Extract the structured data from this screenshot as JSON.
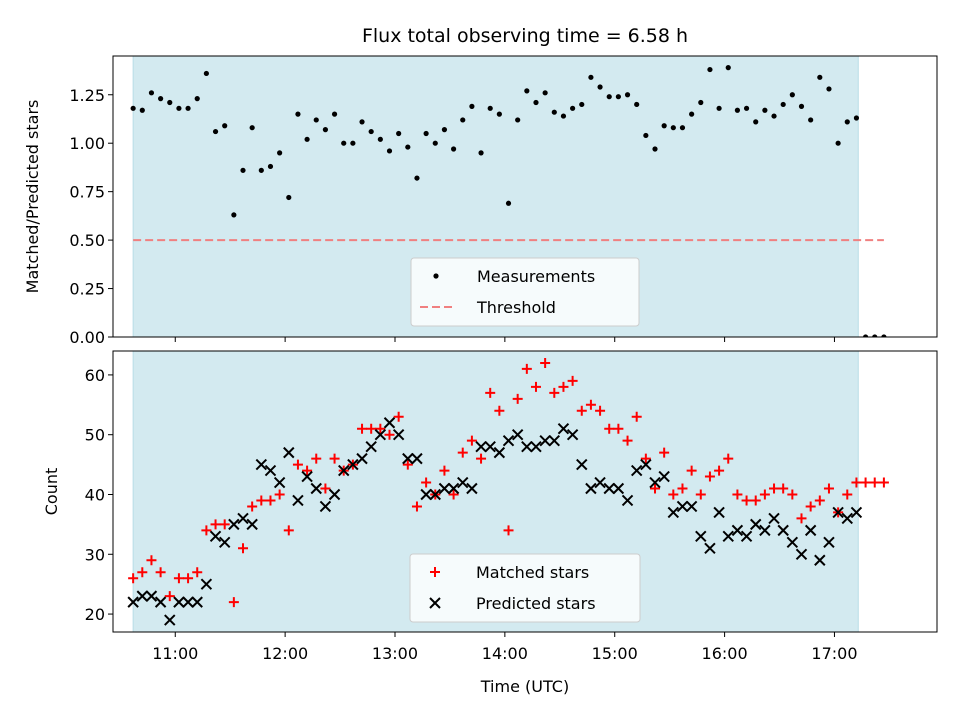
{
  "chart_data": [
    {
      "type": "scatter",
      "title": "Flux total observing time = 6.58 h",
      "ylabel": "Matched/Predicted stars",
      "xlabel": "",
      "x_axis_kind": "time_utc",
      "xlim": [
        "10:26",
        "17:56"
      ],
      "ylim": [
        0,
        1.45
      ],
      "yticks": [
        "0.00",
        "0.25",
        "0.50",
        "0.75",
        "1.00",
        "1.25"
      ],
      "xtick_marks": [
        "11:00",
        "12:00",
        "13:00",
        "14:00",
        "15:00",
        "16:00",
        "17:00"
      ],
      "observing_window": [
        "10:37",
        "17:13"
      ],
      "observing_window_color": "#d3eaf0",
      "grid": false,
      "legend_position": "bottom-center",
      "series": [
        {
          "name": "Measurements",
          "marker": "dot",
          "color": "#000000",
          "points": [
            [
              "10:37",
              1.18
            ],
            [
              "10:42",
              1.17
            ],
            [
              "10:47",
              1.26
            ],
            [
              "10:52",
              1.23
            ],
            [
              "10:57",
              1.21
            ],
            [
              "11:02",
              1.18
            ],
            [
              "11:07",
              1.18
            ],
            [
              "11:12",
              1.23
            ],
            [
              "11:17",
              1.36
            ],
            [
              "11:22",
              1.06
            ],
            [
              "11:27",
              1.09
            ],
            [
              "11:32",
              0.63
            ],
            [
              "11:37",
              0.86
            ],
            [
              "11:42",
              1.08
            ],
            [
              "11:47",
              0.86
            ],
            [
              "11:52",
              0.88
            ],
            [
              "11:57",
              0.95
            ],
            [
              "12:02",
              0.72
            ],
            [
              "12:07",
              1.15
            ],
            [
              "12:12",
              1.02
            ],
            [
              "12:17",
              1.12
            ],
            [
              "12:22",
              1.07
            ],
            [
              "12:27",
              1.15
            ],
            [
              "12:32",
              1.0
            ],
            [
              "12:37",
              1.0
            ],
            [
              "12:42",
              1.11
            ],
            [
              "12:47",
              1.06
            ],
            [
              "12:52",
              1.02
            ],
            [
              "12:57",
              0.96
            ],
            [
              "13:02",
              1.05
            ],
            [
              "13:07",
              0.98
            ],
            [
              "13:12",
              0.82
            ],
            [
              "13:17",
              1.05
            ],
            [
              "13:22",
              1.0
            ],
            [
              "13:27",
              1.07
            ],
            [
              "13:32",
              0.97
            ],
            [
              "13:37",
              1.12
            ],
            [
              "13:42",
              1.19
            ],
            [
              "13:47",
              0.95
            ],
            [
              "13:52",
              1.18
            ],
            [
              "13:57",
              1.15
            ],
            [
              "14:02",
              0.69
            ],
            [
              "14:07",
              1.12
            ],
            [
              "14:12",
              1.27
            ],
            [
              "14:17",
              1.21
            ],
            [
              "14:22",
              1.26
            ],
            [
              "14:27",
              1.16
            ],
            [
              "14:32",
              1.14
            ],
            [
              "14:37",
              1.18
            ],
            [
              "14:42",
              1.2
            ],
            [
              "14:47",
              1.34
            ],
            [
              "14:52",
              1.29
            ],
            [
              "14:57",
              1.24
            ],
            [
              "15:02",
              1.24
            ],
            [
              "15:07",
              1.25
            ],
            [
              "15:12",
              1.2
            ],
            [
              "15:17",
              1.04
            ],
            [
              "15:22",
              0.97
            ],
            [
              "15:27",
              1.09
            ],
            [
              "15:32",
              1.08
            ],
            [
              "15:37",
              1.08
            ],
            [
              "15:42",
              1.15
            ],
            [
              "15:47",
              1.21
            ],
            [
              "15:52",
              1.38
            ],
            [
              "15:57",
              1.18
            ],
            [
              "16:02",
              1.39
            ],
            [
              "16:07",
              1.17
            ],
            [
              "16:12",
              1.18
            ],
            [
              "16:17",
              1.11
            ],
            [
              "16:22",
              1.17
            ],
            [
              "16:27",
              1.14
            ],
            [
              "16:32",
              1.2
            ],
            [
              "16:37",
              1.25
            ],
            [
              "16:42",
              1.19
            ],
            [
              "16:47",
              1.12
            ],
            [
              "16:52",
              1.34
            ],
            [
              "16:57",
              1.28
            ],
            [
              "17:02",
              1.0
            ],
            [
              "17:07",
              1.11
            ],
            [
              "17:12",
              1.13
            ],
            [
              "17:17",
              0.0
            ],
            [
              "17:22",
              0.0
            ],
            [
              "17:27",
              0.0
            ]
          ]
        },
        {
          "name": "Threshold",
          "marker": "dashed-line",
          "color": "#f08080",
          "value": 0.5,
          "x_range": [
            "10:37",
            "17:27"
          ]
        }
      ]
    },
    {
      "type": "scatter",
      "title": "",
      "ylabel": "Count",
      "xlabel": "Time (UTC)",
      "x_axis_kind": "time_utc",
      "xlim": [
        "10:26",
        "17:56"
      ],
      "ylim": [
        17,
        64
      ],
      "yticks": [
        "20",
        "30",
        "40",
        "50",
        "60"
      ],
      "xticks": [
        "11:00",
        "12:00",
        "13:00",
        "14:00",
        "15:00",
        "16:00",
        "17:00"
      ],
      "observing_window": [
        "10:37",
        "17:13"
      ],
      "observing_window_color": "#d3eaf0",
      "grid": false,
      "legend_position": "bottom-center",
      "series": [
        {
          "name": "Matched stars",
          "marker": "plus",
          "color": "#ff0000",
          "points": [
            [
              "10:37",
              26
            ],
            [
              "10:42",
              27
            ],
            [
              "10:47",
              29
            ],
            [
              "10:52",
              27
            ],
            [
              "10:57",
              23
            ],
            [
              "11:02",
              26
            ],
            [
              "11:07",
              26
            ],
            [
              "11:12",
              27
            ],
            [
              "11:17",
              34
            ],
            [
              "11:22",
              35
            ],
            [
              "11:27",
              35
            ],
            [
              "11:32",
              22
            ],
            [
              "11:37",
              31
            ],
            [
              "11:42",
              38
            ],
            [
              "11:47",
              39
            ],
            [
              "11:52",
              39
            ],
            [
              "11:57",
              40
            ],
            [
              "12:02",
              34
            ],
            [
              "12:07",
              45
            ],
            [
              "12:12",
              44
            ],
            [
              "12:17",
              46
            ],
            [
              "12:22",
              41
            ],
            [
              "12:27",
              46
            ],
            [
              "12:32",
              44
            ],
            [
              "12:37",
              45
            ],
            [
              "12:42",
              51
            ],
            [
              "12:47",
              51
            ],
            [
              "12:52",
              51
            ],
            [
              "12:57",
              50
            ],
            [
              "13:02",
              53
            ],
            [
              "13:07",
              45
            ],
            [
              "13:12",
              38
            ],
            [
              "13:17",
              42
            ],
            [
              "13:22",
              40
            ],
            [
              "13:27",
              44
            ],
            [
              "13:32",
              40
            ],
            [
              "13:37",
              47
            ],
            [
              "13:42",
              49
            ],
            [
              "13:47",
              46
            ],
            [
              "13:52",
              57
            ],
            [
              "13:57",
              54
            ],
            [
              "14:02",
              34
            ],
            [
              "14:07",
              56
            ],
            [
              "14:12",
              61
            ],
            [
              "14:17",
              58
            ],
            [
              "14:22",
              62
            ],
            [
              "14:27",
              57
            ],
            [
              "14:32",
              58
            ],
            [
              "14:37",
              59
            ],
            [
              "14:42",
              54
            ],
            [
              "14:47",
              55
            ],
            [
              "14:52",
              54
            ],
            [
              "14:57",
              51
            ],
            [
              "15:02",
              51
            ],
            [
              "15:07",
              49
            ],
            [
              "15:12",
              53
            ],
            [
              "15:17",
              46
            ],
            [
              "15:22",
              41
            ],
            [
              "15:27",
              47
            ],
            [
              "15:32",
              40
            ],
            [
              "15:37",
              41
            ],
            [
              "15:42",
              44
            ],
            [
              "15:47",
              40
            ],
            [
              "15:52",
              43
            ],
            [
              "15:57",
              44
            ],
            [
              "16:02",
              46
            ],
            [
              "16:07",
              40
            ],
            [
              "16:12",
              39
            ],
            [
              "16:17",
              39
            ],
            [
              "16:22",
              40
            ],
            [
              "16:27",
              41
            ],
            [
              "16:32",
              41
            ],
            [
              "16:37",
              40
            ],
            [
              "16:42",
              36
            ],
            [
              "16:47",
              38
            ],
            [
              "16:52",
              39
            ],
            [
              "16:57",
              41
            ],
            [
              "17:02",
              37
            ],
            [
              "17:07",
              40
            ],
            [
              "17:12",
              42
            ],
            [
              "17:17",
              42
            ],
            [
              "17:22",
              42
            ],
            [
              "17:27",
              42
            ]
          ]
        },
        {
          "name": "Predicted stars",
          "marker": "x",
          "color": "#000000",
          "points": [
            [
              "10:37",
              22
            ],
            [
              "10:42",
              23
            ],
            [
              "10:47",
              23
            ],
            [
              "10:52",
              22
            ],
            [
              "10:57",
              19
            ],
            [
              "11:02",
              22
            ],
            [
              "11:07",
              22
            ],
            [
              "11:12",
              22
            ],
            [
              "11:17",
              25
            ],
            [
              "11:22",
              33
            ],
            [
              "11:27",
              32
            ],
            [
              "11:32",
              35
            ],
            [
              "11:37",
              36
            ],
            [
              "11:42",
              35
            ],
            [
              "11:47",
              45
            ],
            [
              "11:52",
              44
            ],
            [
              "11:57",
              42
            ],
            [
              "12:02",
              47
            ],
            [
              "12:07",
              39
            ],
            [
              "12:12",
              43
            ],
            [
              "12:17",
              41
            ],
            [
              "12:22",
              38
            ],
            [
              "12:27",
              40
            ],
            [
              "12:32",
              44
            ],
            [
              "12:37",
              45
            ],
            [
              "12:42",
              46
            ],
            [
              "12:47",
              48
            ],
            [
              "12:52",
              50
            ],
            [
              "12:57",
              52
            ],
            [
              "13:02",
              50
            ],
            [
              "13:07",
              46
            ],
            [
              "13:12",
              46
            ],
            [
              "13:17",
              40
            ],
            [
              "13:22",
              40
            ],
            [
              "13:27",
              41
            ],
            [
              "13:32",
              41
            ],
            [
              "13:37",
              42
            ],
            [
              "13:42",
              41
            ],
            [
              "13:47",
              48
            ],
            [
              "13:52",
              48
            ],
            [
              "13:57",
              47
            ],
            [
              "14:02",
              49
            ],
            [
              "14:07",
              50
            ],
            [
              "14:12",
              48
            ],
            [
              "14:17",
              48
            ],
            [
              "14:22",
              49
            ],
            [
              "14:27",
              49
            ],
            [
              "14:32",
              51
            ],
            [
              "14:37",
              50
            ],
            [
              "14:42",
              45
            ],
            [
              "14:47",
              41
            ],
            [
              "14:52",
              42
            ],
            [
              "14:57",
              41
            ],
            [
              "15:02",
              41
            ],
            [
              "15:07",
              39
            ],
            [
              "15:12",
              44
            ],
            [
              "15:17",
              45
            ],
            [
              "15:22",
              42
            ],
            [
              "15:27",
              43
            ],
            [
              "15:32",
              37
            ],
            [
              "15:37",
              38
            ],
            [
              "15:42",
              38
            ],
            [
              "15:47",
              33
            ],
            [
              "15:52",
              31
            ],
            [
              "15:57",
              37
            ],
            [
              "16:02",
              33
            ],
            [
              "16:07",
              34
            ],
            [
              "16:12",
              33
            ],
            [
              "16:17",
              35
            ],
            [
              "16:22",
              34
            ],
            [
              "16:27",
              36
            ],
            [
              "16:32",
              34
            ],
            [
              "16:37",
              32
            ],
            [
              "16:42",
              30
            ],
            [
              "16:47",
              34
            ],
            [
              "16:52",
              29
            ],
            [
              "16:57",
              32
            ],
            [
              "17:02",
              37
            ],
            [
              "17:07",
              36
            ],
            [
              "17:12",
              37
            ]
          ]
        }
      ]
    }
  ]
}
